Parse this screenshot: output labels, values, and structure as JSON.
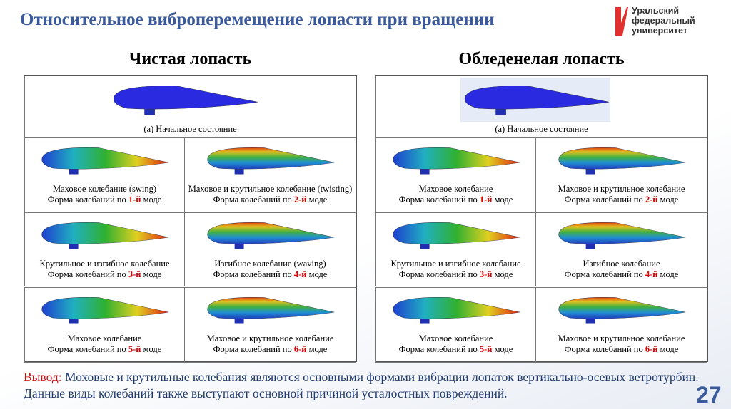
{
  "header": {
    "title": "Относительное виброперемещение лопасти при вращении",
    "logo": [
      "Уральский",
      "федеральный",
      "университет"
    ]
  },
  "panels": [
    {
      "heading": "Чистая лопасть",
      "initial": "(а) Начальное состояние",
      "cells": [
        {
          "label": "Маховое колебание (swing)",
          "mode_prefix": "Форма колебаний по",
          "mode": "1-й",
          "mode_suffix": "моде"
        },
        {
          "label": "Маховое и крутильное колебание (twisting)",
          "mode_prefix": "Форма колебаний по",
          "mode": "2-й",
          "mode_suffix": "моде"
        },
        {
          "label": "Крутильное и изгибное колебание",
          "mode_prefix": "Форма колебаний по",
          "mode": "3-й",
          "mode_suffix": "моде"
        },
        {
          "label": "Изгибное колебание (waving)",
          "mode_prefix": "Форма колебаний по",
          "mode": "4-й",
          "mode_suffix": "моде"
        },
        {
          "label": "Маховое колебание",
          "mode_prefix": "Форма колебаний по",
          "mode": "5-й",
          "mode_suffix": "моде"
        },
        {
          "label": "Маховое и крутильное колебание",
          "mode_prefix": "Форма колебаний по",
          "mode": "6-й",
          "mode_suffix": "моде"
        }
      ]
    },
    {
      "heading": "Обледенелая лопасть",
      "initial": "(а) Начальное состояние",
      "cells": [
        {
          "label": "Маховое колебание",
          "mode_prefix": "Форма колебаний по",
          "mode": "1-й",
          "mode_suffix": "моде"
        },
        {
          "label": "Маховое и крутильное колебание",
          "mode_prefix": "Форма колебаний по",
          "mode": "2-й",
          "mode_suffix": "моде"
        },
        {
          "label": "Крутильное и изгибное колебание",
          "mode_prefix": "Форма колебаний по",
          "mode": "3-й",
          "mode_suffix": "моде"
        },
        {
          "label": "Изгибное колебание",
          "mode_prefix": "Форма колебаний по",
          "mode": "4-й",
          "mode_suffix": "моде"
        },
        {
          "label": "Маховое колебание",
          "mode_prefix": "Форма колебаний по",
          "mode": "5-й",
          "mode_suffix": "моде"
        },
        {
          "label": "Маховое и крутильное колебание",
          "mode_prefix": "Форма колебаний по",
          "mode": "6-й",
          "mode_suffix": "моде"
        }
      ]
    }
  ],
  "conclusion": {
    "lead": "Вывод:",
    "text": "Моховые и крутильные колебания являются основными формами вибрации лопаток вертикально-осевых ветротурбин. Данные виды колебаний также выступают основной причиной усталостных повреждений."
  },
  "page_number": "27"
}
